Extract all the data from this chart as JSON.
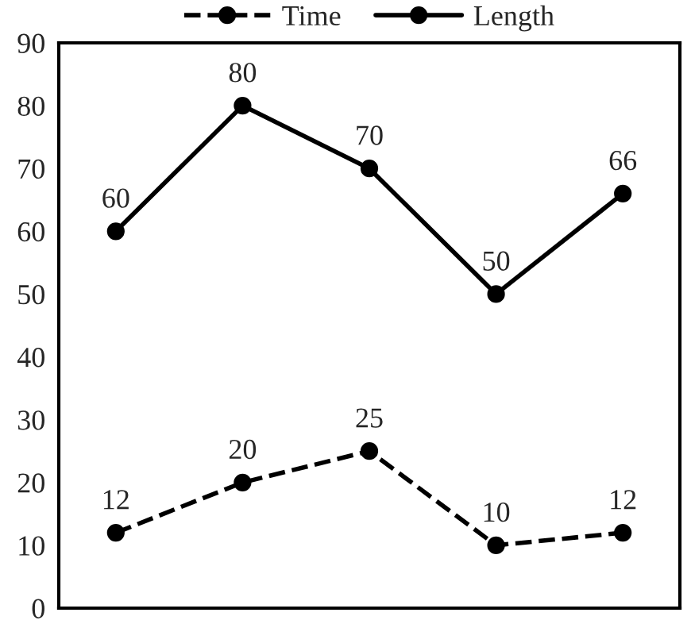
{
  "chart_data": {
    "type": "line",
    "categories": [
      null,
      null,
      null,
      null,
      null
    ],
    "series": [
      {
        "name": "Time",
        "color": "#000000",
        "values": [
          12,
          20,
          25,
          10,
          12
        ],
        "line_style": "dashed"
      },
      {
        "name": "Length",
        "color": "#000000",
        "values": [
          60,
          80,
          70,
          50,
          66
        ],
        "line_style": "solid"
      }
    ],
    "ylim": [
      0,
      90
    ],
    "yticks": [
      0,
      10,
      20,
      30,
      40,
      50,
      60,
      70,
      80,
      90
    ],
    "marker": "circle",
    "data_labels": true,
    "grid": false,
    "legend": "top"
  }
}
